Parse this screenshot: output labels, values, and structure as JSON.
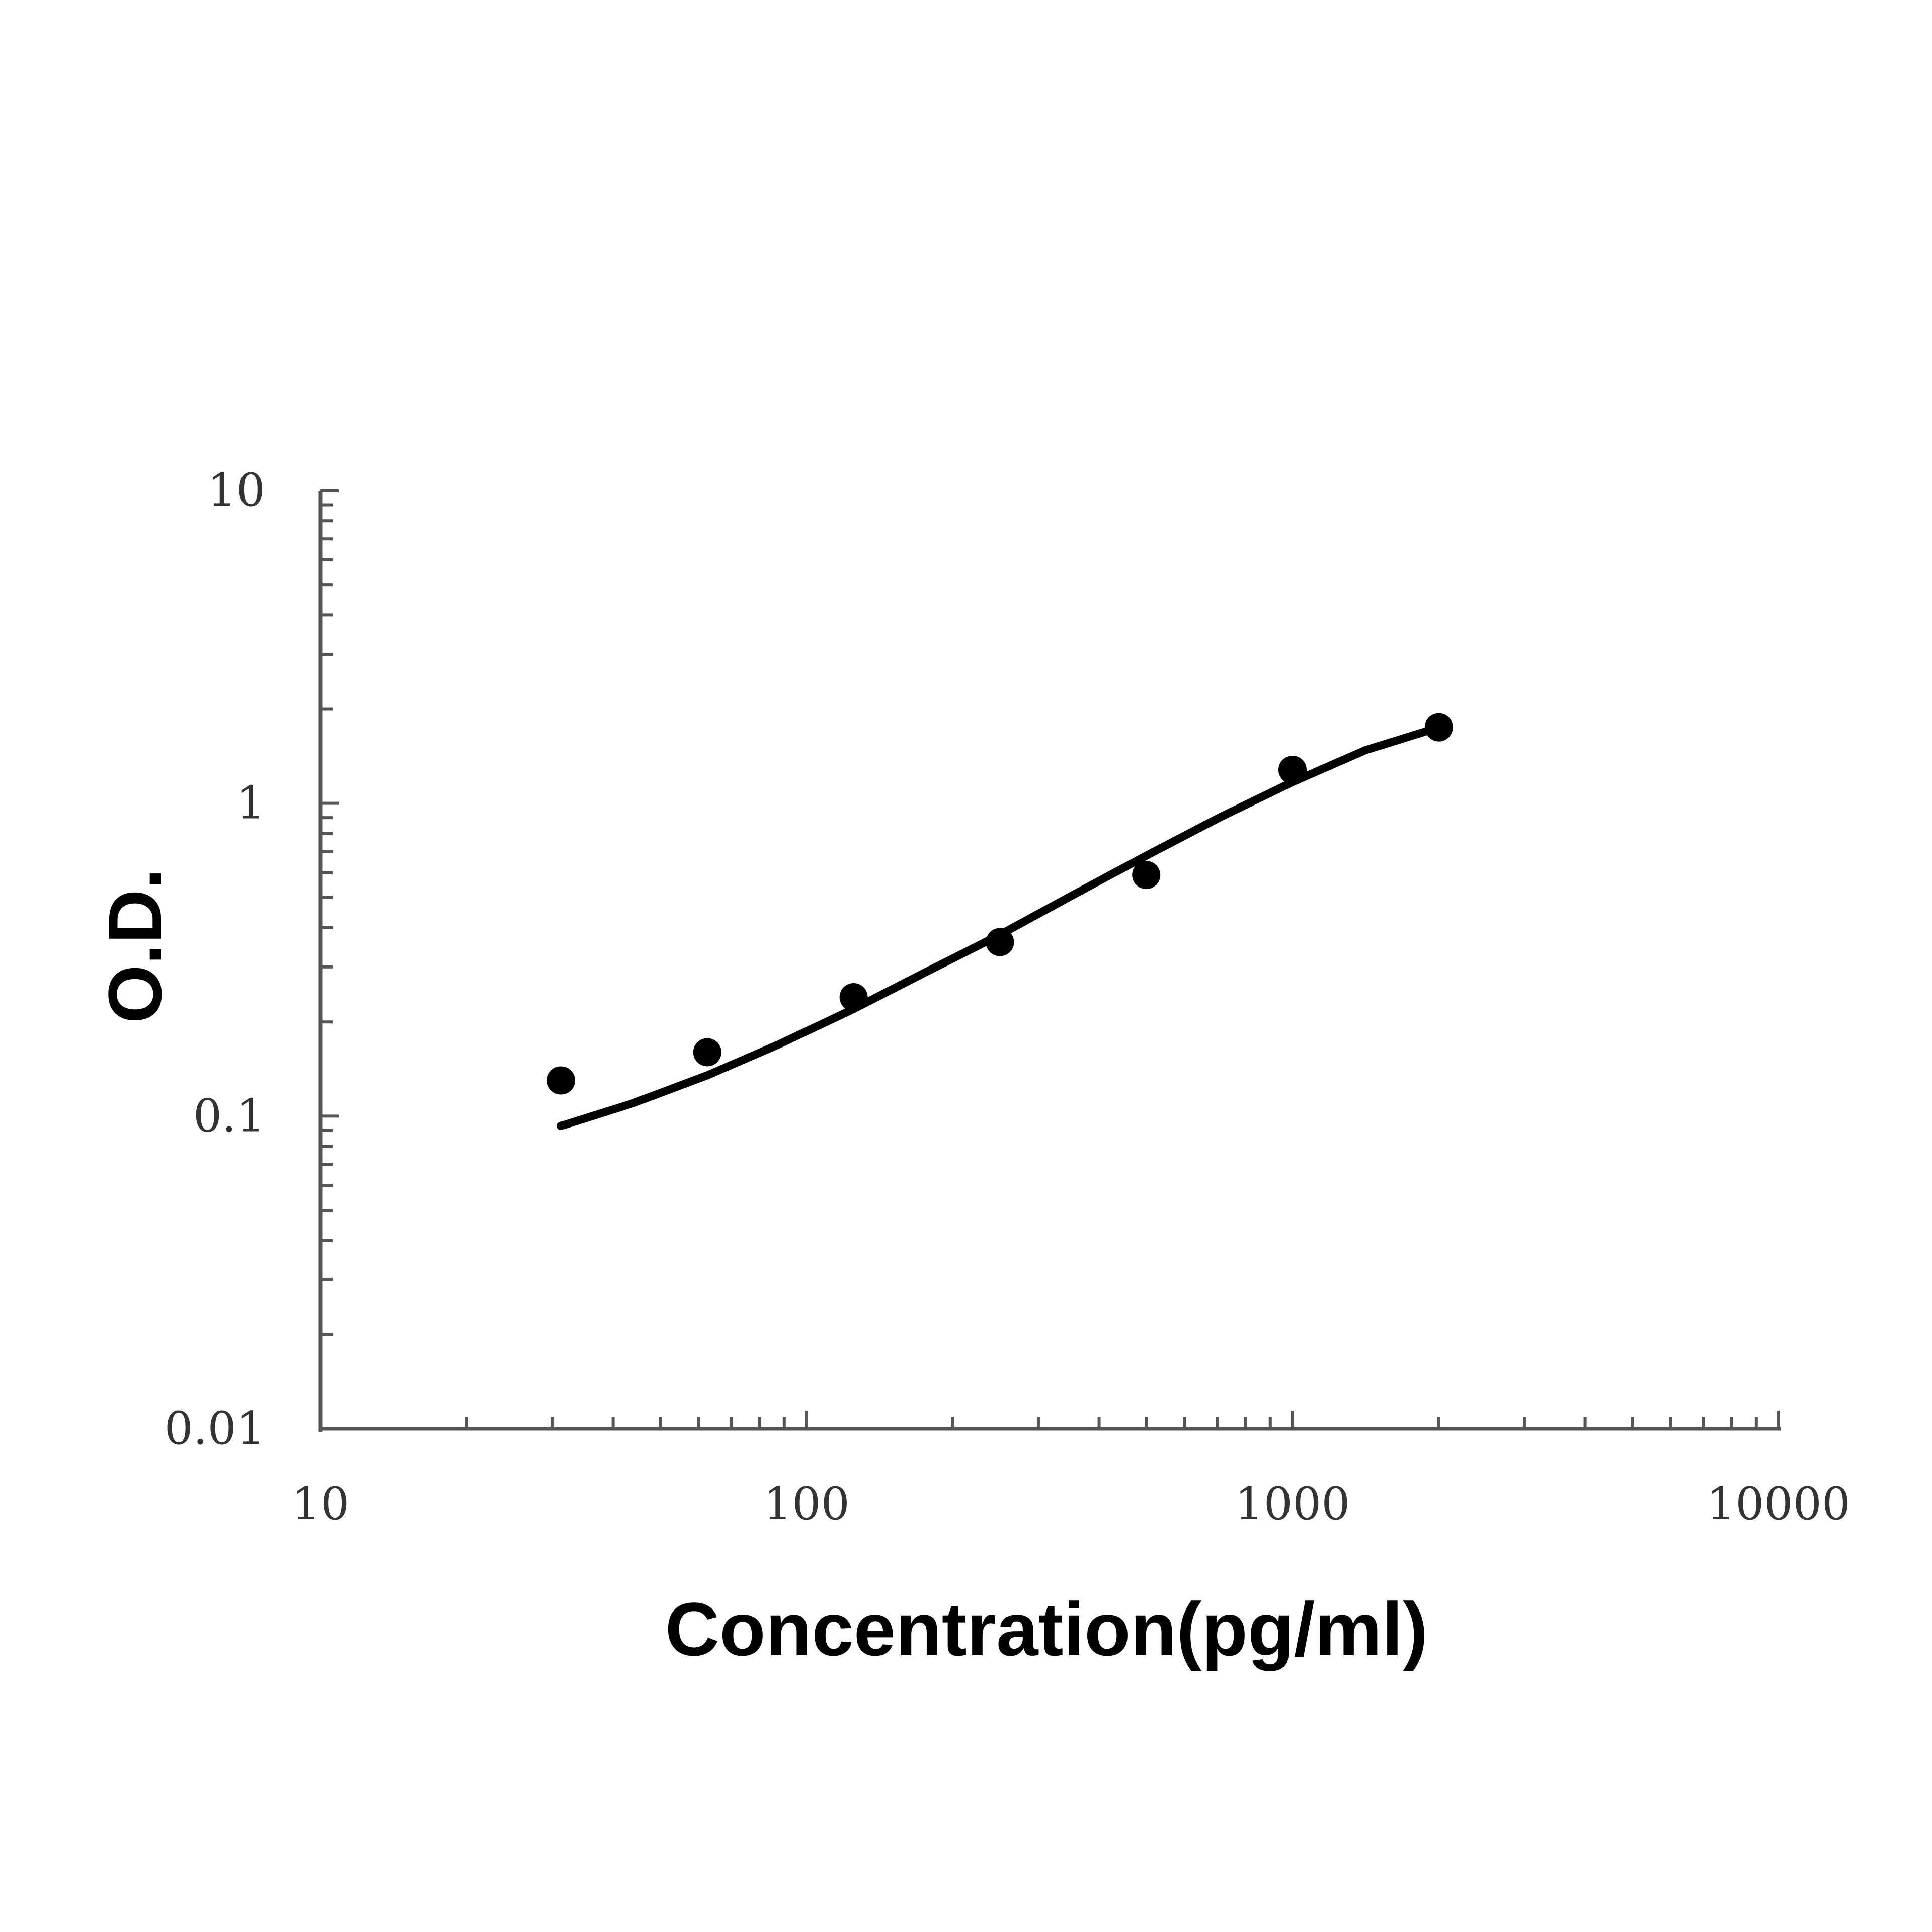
{
  "chart_data": {
    "type": "scatter",
    "title": "",
    "xlabel": "Concentration(pg/ml)",
    "ylabel": "O.D.",
    "xscale": "log",
    "yscale": "log",
    "xlim": [
      10,
      10000
    ],
    "ylim": [
      0.01,
      10
    ],
    "x_ticks": [
      "10",
      "100",
      "1000",
      "10000"
    ],
    "y_ticks": [
      "0.01",
      "0.1",
      "1",
      "10"
    ],
    "grid": false,
    "legend": "none",
    "colors": {
      "points": "#000000",
      "curve": "#000000",
      "axis": "#555555"
    },
    "series": [
      {
        "kind": "points",
        "x": [
          31.25,
          62.5,
          125,
          250,
          500,
          1000,
          2000
        ],
        "y": [
          0.13,
          0.16,
          0.24,
          0.36,
          0.59,
          1.28,
          1.75
        ]
      },
      {
        "kind": "fit-curve",
        "x": [
          31.25,
          44,
          62.5,
          88,
          125,
          177,
          250,
          354,
          500,
          707,
          1000,
          1414,
          2000
        ],
        "y": [
          0.093,
          0.11,
          0.135,
          0.17,
          0.22,
          0.29,
          0.38,
          0.51,
          0.68,
          0.9,
          1.17,
          1.48,
          1.75
        ]
      }
    ]
  }
}
